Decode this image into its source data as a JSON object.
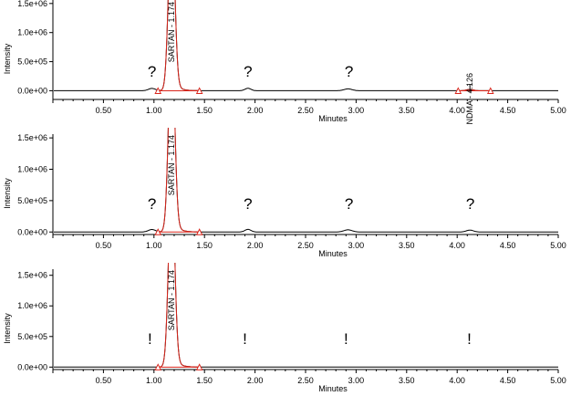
{
  "chart_data": [
    {
      "type": "line",
      "xlabel": "Minutes",
      "ylabel": "Intensity",
      "xlim": [
        0.0,
        5.0
      ],
      "ylim": [
        -150000,
        1560000
      ],
      "x_ticks": [
        "0.50",
        "1.00",
        "1.50",
        "2.00",
        "2.50",
        "3.00",
        "3.50",
        "4.00",
        "4.50",
        "5.00"
      ],
      "y_ticks": [
        "0.0e+00",
        "5.0e+05",
        "1.0e+06",
        "1.5e+06"
      ],
      "peak_labels": [
        {
          "text": "SARTAN - 1.174",
          "x": 1.174
        },
        {
          "text": "NDMA - 4.126",
          "x": 4.126
        }
      ],
      "markers": [
        {
          "text": "?",
          "x": 0.98
        },
        {
          "text": "?",
          "x": 1.93
        },
        {
          "text": "?",
          "x": 2.93
        }
      ],
      "integrations": [
        {
          "start": 1.04,
          "end": 1.45
        },
        {
          "start": 4.01,
          "end": 4.33
        }
      ],
      "series": [
        {
          "color": "#000000",
          "peaks": [
            {
              "x": 0.98,
              "height": 40000,
              "width": 0.035
            },
            {
              "x": 1.174,
              "height": 3000000,
              "width": 0.03
            },
            {
              "x": 1.93,
              "height": 42000,
              "width": 0.03
            },
            {
              "x": 2.92,
              "height": 32000,
              "width": 0.04
            },
            {
              "x": 4.126,
              "height": 22000,
              "width": 0.035
            }
          ]
        }
      ]
    },
    {
      "type": "line",
      "xlabel": "Minutes",
      "ylabel": "Intensity",
      "xlim": [
        0.0,
        5.0
      ],
      "ylim": [
        -40000,
        1560000
      ],
      "x_ticks": [
        "0.50",
        "1.00",
        "1.50",
        "2.00",
        "2.50",
        "3.00",
        "3.50",
        "4.00",
        "4.50",
        "5.00"
      ],
      "y_ticks": [
        "0.0e+00",
        "5.0e+05",
        "1.0e+06",
        "1.5e+06"
      ],
      "peak_labels": [
        {
          "text": "SARTAN - 1.174",
          "x": 1.174
        }
      ],
      "markers": [
        {
          "text": "?",
          "x": 0.98
        },
        {
          "text": "?",
          "x": 1.93
        },
        {
          "text": "?",
          "x": 2.93
        },
        {
          "text": "?",
          "x": 4.13
        }
      ],
      "integrations": [
        {
          "start": 1.04,
          "end": 1.45
        }
      ],
      "series": [
        {
          "color": "#000000",
          "peaks": [
            {
              "x": 0.98,
              "height": 40000,
              "width": 0.035
            },
            {
              "x": 1.174,
              "height": 3000000,
              "width": 0.03
            },
            {
              "x": 1.93,
              "height": 42000,
              "width": 0.03
            },
            {
              "x": 2.92,
              "height": 35000,
              "width": 0.04
            },
            {
              "x": 4.126,
              "height": 30000,
              "width": 0.035
            }
          ]
        }
      ]
    },
    {
      "type": "line",
      "xlabel": "Minutes",
      "ylabel": "Intensity",
      "xlim": [
        0.0,
        5.0
      ],
      "ylim": [
        -40000,
        1600000
      ],
      "x_ticks": [
        "0.50",
        "1.00",
        "1.50",
        "2.00",
        "2.50",
        "3.00",
        "3.50",
        "4.00",
        "4.50",
        "5.00"
      ],
      "y_ticks": [
        "0.0e+00",
        "5.0e+05",
        "1.0e+06",
        "1.5e+06"
      ],
      "peak_labels": [
        {
          "text": "SARTAN - 1.174",
          "x": 1.174
        }
      ],
      "markers": [
        {
          "text": "!",
          "x": 0.96
        },
        {
          "text": "!",
          "x": 1.9
        },
        {
          "text": "!",
          "x": 2.9
        },
        {
          "text": "!",
          "x": 4.12
        }
      ],
      "integrations": [
        {
          "start": 1.04,
          "end": 1.45
        }
      ],
      "series": [
        {
          "color": "#000000",
          "peaks": [
            {
              "x": 1.174,
              "height": 3000000,
              "width": 0.03
            }
          ]
        }
      ]
    }
  ]
}
